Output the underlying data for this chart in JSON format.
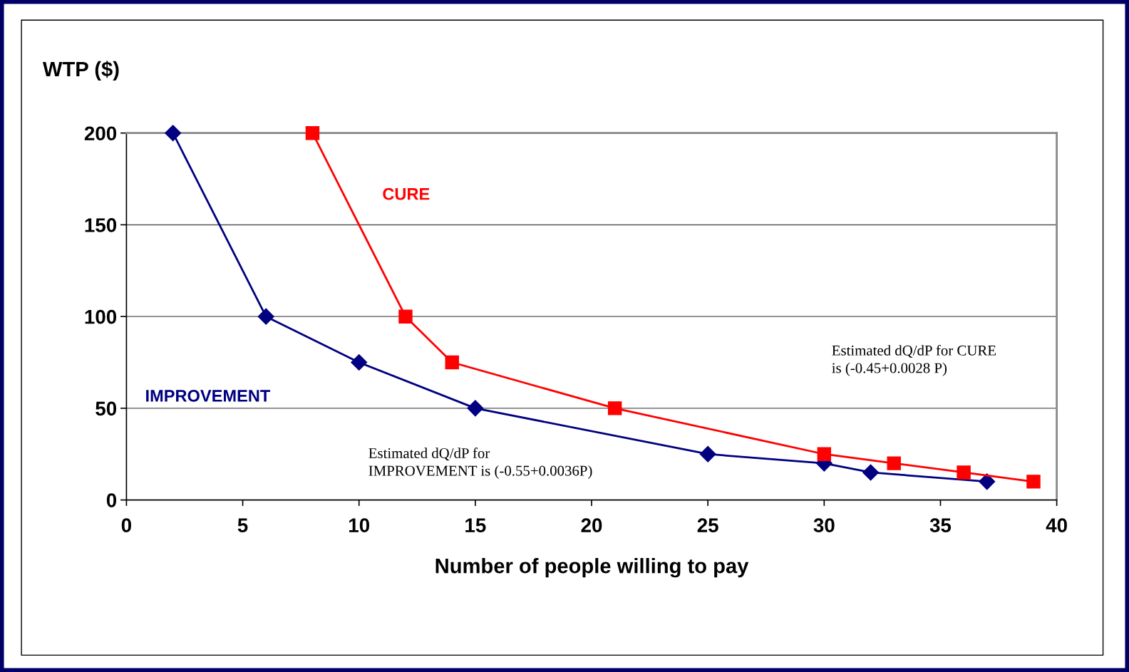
{
  "chart_data": {
    "type": "line",
    "ylabel": "WTP ($)",
    "xlabel": "Number of people willing to pay",
    "xlim": [
      0,
      40
    ],
    "xticks": [
      0,
      5,
      10,
      15,
      20,
      25,
      30,
      35,
      40
    ],
    "ylim": [
      0,
      200
    ],
    "yticks": [
      0,
      50,
      100,
      150,
      200
    ],
    "grid": "y",
    "legend": false,
    "series": [
      {
        "name": "IMPROVEMENT",
        "color": "#000080",
        "marker": "diamond",
        "x": [
          2,
          6,
          10,
          15,
          25,
          30,
          32,
          37
        ],
        "values": [
          200,
          100,
          75,
          50,
          25,
          20,
          15,
          10
        ]
      },
      {
        "name": "CURE",
        "color": "#ff0000",
        "marker": "square",
        "x": [
          8,
          12,
          14,
          21,
          30,
          33,
          36,
          39
        ],
        "values": [
          200,
          100,
          75,
          50,
          25,
          20,
          15,
          10
        ]
      }
    ],
    "annotations": [
      "Estimated dQ/dP for CURE\nis (-0.45+0.0028 P)",
      "Estimated dQ/dP for\nIMPROVEMENT is (-0.55+0.0036P)"
    ]
  }
}
